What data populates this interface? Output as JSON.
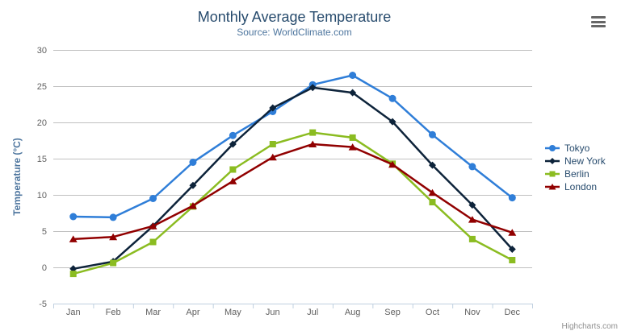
{
  "chart_data": {
    "type": "line",
    "title": "Monthly Average Temperature",
    "subtitle": "Source: WorldClimate.com",
    "xlabel": "",
    "ylabel": "Temperature (°C)",
    "ylim": [
      -5,
      30
    ],
    "ytick_interval": 5,
    "grid": true,
    "legend_position": "right-middle",
    "categories": [
      "Jan",
      "Feb",
      "Mar",
      "Apr",
      "May",
      "Jun",
      "Jul",
      "Aug",
      "Sep",
      "Oct",
      "Nov",
      "Dec"
    ],
    "series": [
      {
        "name": "Tokyo",
        "color": "#2f7ed8",
        "marker": "circle",
        "values": [
          7.0,
          6.9,
          9.5,
          14.5,
          18.2,
          21.5,
          25.2,
          26.5,
          23.3,
          18.3,
          13.9,
          9.6
        ]
      },
      {
        "name": "New York",
        "color": "#0d233a",
        "marker": "diamond",
        "values": [
          -0.2,
          0.8,
          5.7,
          11.3,
          17.0,
          22.0,
          24.8,
          24.1,
          20.1,
          14.1,
          8.6,
          2.5
        ]
      },
      {
        "name": "Berlin",
        "color": "#8bbc21",
        "marker": "square",
        "values": [
          -0.9,
          0.6,
          3.5,
          8.4,
          13.5,
          17.0,
          18.6,
          17.9,
          14.3,
          9.0,
          3.9,
          1.0
        ]
      },
      {
        "name": "London",
        "color": "#910000",
        "marker": "triangle",
        "values": [
          3.9,
          4.2,
          5.7,
          8.5,
          11.9,
          15.2,
          17.0,
          16.6,
          14.2,
          10.3,
          6.6,
          4.8
        ]
      }
    ]
  },
  "export_menu": {
    "icon": "hamburger-icon"
  },
  "credits": "Highcharts.com",
  "theme": {
    "title_color": "#274b6d",
    "subtitle_color": "#4d759e",
    "axis_label_color": "#606060",
    "axis_title_color": "#4d759e",
    "grid_color": "#c0c0c0",
    "axis_line_color": "#c0d0e0",
    "legend_text_color": "#274b6d",
    "credits_color": "#909090"
  }
}
